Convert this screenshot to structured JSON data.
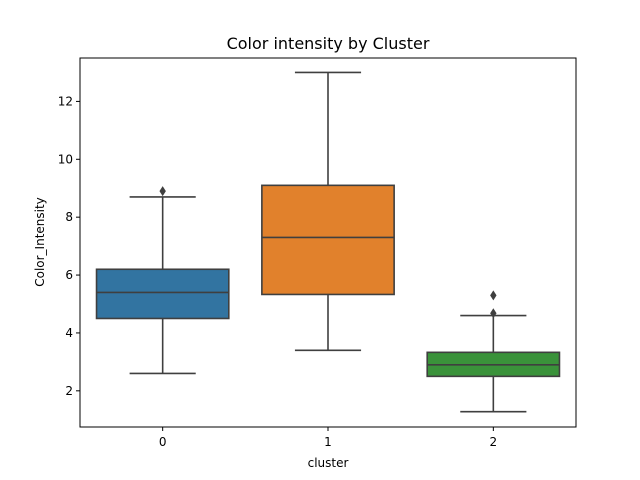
{
  "chart_data": {
    "type": "box",
    "title": "Color intensity by Cluster",
    "xlabel": "cluster",
    "ylabel": "Color_Intensity",
    "categories": [
      "0",
      "1",
      "2"
    ],
    "ylim": [
      0.75,
      13.5
    ],
    "yticks": [
      2,
      4,
      6,
      8,
      10,
      12
    ],
    "grid": false,
    "boxes": [
      {
        "category": "0",
        "color": "#3274a1",
        "whisker_low": 2.6,
        "q1": 4.5,
        "median": 5.4,
        "q3": 6.2,
        "whisker_high": 8.7,
        "outliers": [
          8.9
        ]
      },
      {
        "category": "1",
        "color": "#e1812c",
        "whisker_low": 3.4,
        "q1": 5.33,
        "median": 7.3,
        "q3": 9.1,
        "whisker_high": 13.0,
        "outliers": []
      },
      {
        "category": "2",
        "color": "#3a923a",
        "whisker_low": 1.28,
        "q1": 2.5,
        "median": 2.9,
        "q3": 3.33,
        "whisker_high": 4.6,
        "outliers": [
          4.68,
          5.3
        ]
      }
    ]
  }
}
